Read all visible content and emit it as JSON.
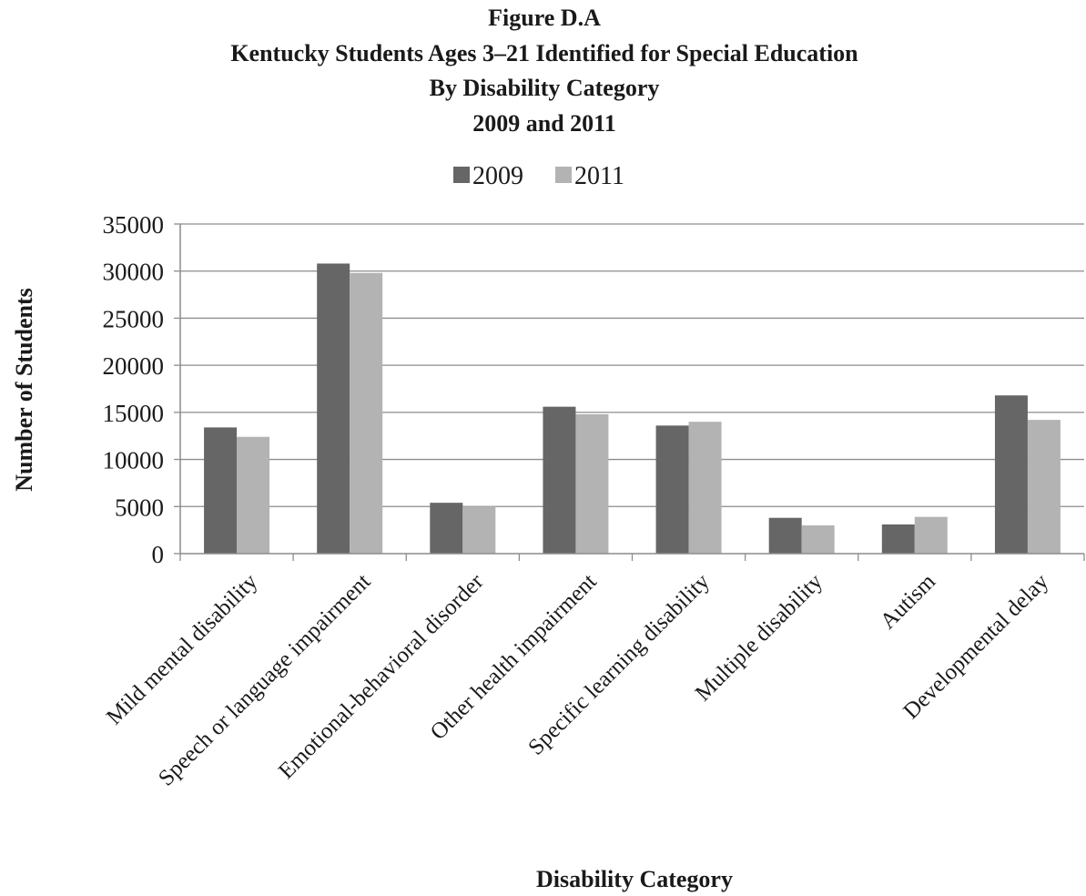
{
  "chart_data": {
    "type": "bar",
    "title_lines": [
      "Figure D.A",
      "Kentucky Students Ages 3–21 Identified for Special Education",
      "By Disability Category",
      "2009 and 2011"
    ],
    "xlabel": "Disability Category",
    "ylabel": "Number of Students",
    "categories": [
      "Mild mental disability",
      "Speech or language impairment",
      "Emotional-behavioral disorder",
      "Other health impairment",
      "Specific learning disability",
      "Multiple disability",
      "Autism",
      "Developmental delay"
    ],
    "series": [
      {
        "name": "2009",
        "color": "#666666",
        "values": [
          13400,
          30800,
          5400,
          15600,
          13600,
          3800,
          3100,
          16800
        ]
      },
      {
        "name": "2011",
        "color": "#b3b3b3",
        "values": [
          12400,
          29800,
          5000,
          14800,
          14000,
          3000,
          3900,
          14200
        ]
      }
    ],
    "yticks": [
      "0",
      "5000",
      "10000",
      "15000",
      "20000",
      "25000",
      "30000",
      "35000"
    ],
    "ylim": [
      0,
      35000
    ],
    "grid": true,
    "legend_position": "top-center"
  }
}
